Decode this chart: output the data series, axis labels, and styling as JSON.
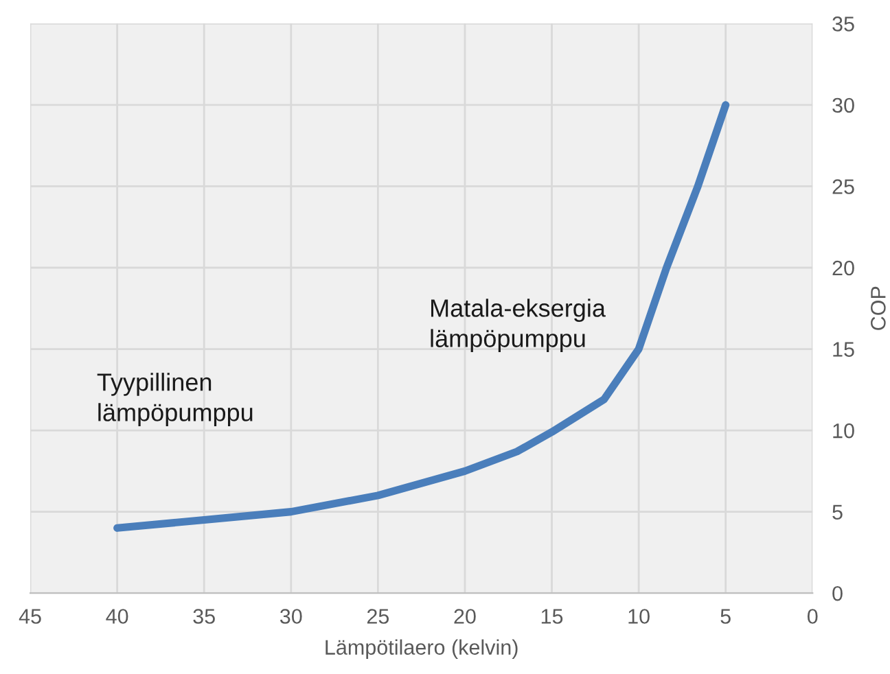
{
  "chart_data": {
    "type": "line",
    "xlabel": "Lämpötilaero (kelvin)",
    "ylabel": "COP",
    "x": [
      40,
      35,
      30,
      25,
      20,
      17,
      15,
      12,
      10,
      8.4,
      6.6,
      5
    ],
    "series": [
      {
        "color": "#4a7ebb",
        "values": [
          4,
          4.5,
          5,
          6,
          7.5,
          8.7,
          9.9,
          11.9,
          15,
          20,
          25,
          30
        ]
      }
    ],
    "xlim": [
      45,
      0
    ],
    "xticks": [
      45,
      40,
      35,
      30,
      25,
      20,
      15,
      10,
      5,
      0
    ],
    "ylim": [
      0,
      35
    ],
    "yticks": [
      0,
      5,
      10,
      15,
      20,
      25,
      30,
      35
    ],
    "grid": true,
    "marker": "none",
    "line_style": "solid",
    "annotations": [
      "Tyypillinen\nlämpöpumppu",
      "Matala-eksergia\nlämpöpumppu"
    ]
  }
}
